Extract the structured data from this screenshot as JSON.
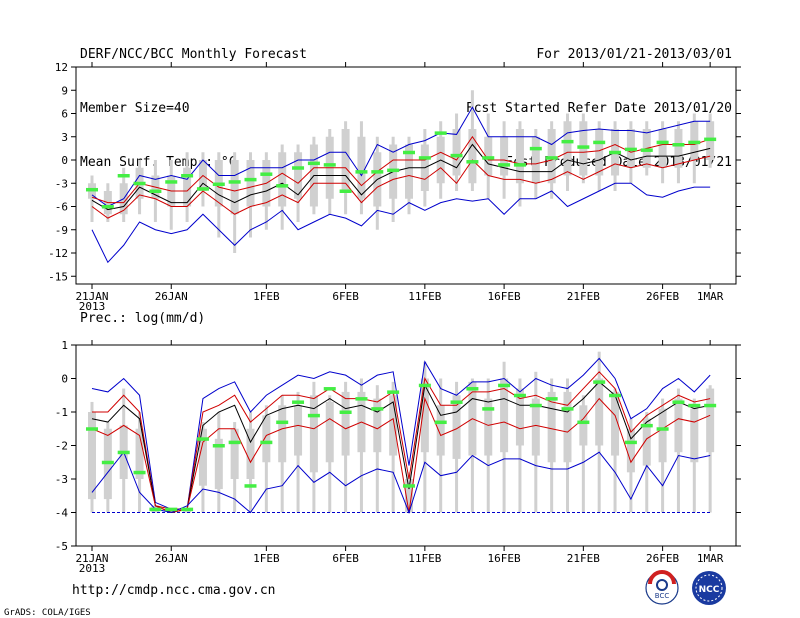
{
  "header": {
    "left": [
      "DERF/NCC/BCC Monthly Forecast",
      "Member Size=40",
      "Mean Surf. Temp.: °C"
    ],
    "right": [
      "For 2013/01/21-2013/03/01",
      "Fcst Started Refer Date 2013/01/20",
      "Fcst Produced Date 2013/01/21"
    ]
  },
  "footer": {
    "url": "http://cmdp.ncc.cma.gov.cn",
    "grads": "GrADS: COLA/IGES",
    "logo_left_text": "BCC",
    "logo_right_text": "NCC"
  },
  "colors": {
    "box": "#d0d0d0",
    "mean": "#000000",
    "spread": "#d00000",
    "extreme": "#0000cc",
    "marker": "#44ee44"
  },
  "chart_data": [
    {
      "type": "line",
      "title": "Mean Surf. Temp.: °C",
      "ylim": [
        -16,
        12
      ],
      "yticks": [
        12,
        9,
        6,
        3,
        0,
        -3,
        -6,
        -9,
        -12,
        -15
      ],
      "xticks": [
        {
          "day": 0,
          "label": "21JAN",
          "sub": "2013"
        },
        {
          "day": 5,
          "label": "26JAN"
        },
        {
          "day": 11,
          "label": "1FEB"
        },
        {
          "day": 16,
          "label": "6FEB"
        },
        {
          "day": 21,
          "label": "11FEB"
        },
        {
          "day": 26,
          "label": "16FEB"
        },
        {
          "day": 31,
          "label": "21FEB"
        },
        {
          "day": 36,
          "label": "26FEB"
        },
        {
          "day": 39,
          "label": "1MAR"
        }
      ],
      "box_low": [
        -5,
        -7,
        -7,
        -5,
        -5,
        -6,
        -6,
        -4,
        -6,
        -7,
        -6,
        -6,
        -6,
        -5,
        -6,
        -5,
        -4,
        -5,
        -6,
        -5,
        -5,
        -4,
        -3,
        -2,
        -3,
        -2,
        -2,
        -3,
        -3,
        -3,
        -2,
        -2,
        -2,
        -2,
        -1,
        -1,
        -1,
        -1,
        0,
        0
      ],
      "box_high": [
        -3,
        -4,
        -3,
        -1,
        -2,
        -2,
        -1,
        0,
        0,
        0,
        0,
        0,
        1,
        1,
        2,
        3,
        4,
        3,
        1,
        2,
        2,
        2,
        3,
        4,
        4,
        3,
        3,
        4,
        3,
        4,
        5,
        5,
        4,
        4,
        4,
        4,
        4,
        4,
        5,
        5
      ],
      "whisk_low": [
        -8,
        -8,
        -8,
        -7,
        -8,
        -9,
        -8,
        -6,
        -10,
        -12,
        -10,
        -9,
        -9,
        -8,
        -7,
        -7,
        -7,
        -7,
        -9,
        -8,
        -7,
        -6,
        -5,
        -4,
        -4,
        -5,
        -5,
        -6,
        -5,
        -5,
        -4,
        -3,
        -4,
        -4,
        -3,
        -2,
        -3,
        -3,
        -3,
        -1
      ],
      "whisk_high": [
        -2,
        -3,
        -1,
        0,
        0,
        0,
        1,
        1,
        1,
        1,
        1,
        1,
        2,
        2,
        3,
        4,
        5,
        5,
        3,
        3,
        3,
        4,
        5,
        6,
        9,
        6,
        5,
        5,
        4,
        5,
        6,
        6,
        5,
        5,
        5,
        5,
        5,
        5,
        6,
        6
      ],
      "markers": [
        -3.8,
        -6,
        -2,
        -3,
        -4,
        -2.8,
        -2,
        -3.7,
        -3.1,
        -2.8,
        -2.5,
        -1.8,
        -3.3,
        -1,
        -0.4,
        -0.6,
        -4,
        -1.5,
        -1.5,
        -1.3,
        1,
        0.3,
        3.5,
        0.6,
        -0.2,
        0.3,
        -0.6,
        -0.6,
        1.5,
        0.3,
        2.4,
        1.7,
        2.3,
        1,
        1.4,
        1.3,
        2.3,
        2,
        2.3,
        2.7
      ],
      "series": [
        {
          "name": "max",
          "values": [
            -4.5,
            -6,
            -5,
            -2,
            -2.5,
            -2,
            -2.5,
            0,
            -2,
            -2,
            -1,
            -1,
            -1,
            0,
            0,
            1,
            1,
            -2,
            2,
            1,
            2,
            2.5,
            3.5,
            3.3,
            6.8,
            3,
            3,
            3,
            3,
            2,
            3.5,
            3.8,
            4,
            3.8,
            3.8,
            3.5,
            4,
            4.5,
            5,
            5
          ]
        },
        {
          "name": "upper",
          "values": [
            -4.8,
            -5.5,
            -5.5,
            -3,
            -3.5,
            -4,
            -4,
            -2,
            -3.5,
            -4,
            -3.5,
            -3,
            -1.7,
            -3,
            -1,
            -1,
            -1,
            -3.3,
            -1.5,
            0,
            0,
            0,
            1,
            0,
            3,
            0,
            0,
            -0.5,
            -0.5,
            0,
            1,
            1,
            1.2,
            2,
            1,
            1.5,
            2,
            2,
            2,
            2.7
          ]
        },
        {
          "name": "mean",
          "values": [
            -5.2,
            -6.4,
            -6,
            -3.5,
            -4.5,
            -5.5,
            -5.5,
            -3,
            -4.5,
            -5.5,
            -4.5,
            -4,
            -3,
            -4.5,
            -2,
            -2,
            -2,
            -4.5,
            -2.5,
            -1.5,
            -1,
            -1,
            0,
            -1,
            2,
            -0.5,
            -1,
            -1.5,
            -1.5,
            -1.5,
            0,
            -0.5,
            0,
            1,
            0,
            0.5,
            0.5,
            0.5,
            1,
            1.5
          ]
        },
        {
          "name": "lower",
          "values": [
            -6,
            -7.5,
            -6.5,
            -4.5,
            -5,
            -6,
            -6,
            -4,
            -5.5,
            -7,
            -6,
            -5.5,
            -4.5,
            -5.5,
            -3,
            -3,
            -3,
            -5.5,
            -3.5,
            -2.5,
            -2,
            -2.5,
            -1,
            -3,
            0,
            -2,
            -2.5,
            -2.5,
            -3,
            -2.5,
            -1.5,
            -2.5,
            -1.5,
            -0.5,
            -1,
            -0.5,
            -1,
            -0.5,
            0,
            0.5
          ]
        },
        {
          "name": "min",
          "values": [
            -9,
            -13.2,
            -11,
            -8,
            -9,
            -9.5,
            -9,
            -7,
            -9,
            -11,
            -9,
            -8,
            -6.5,
            -9,
            -8,
            -7,
            -7.5,
            -8.5,
            -6.5,
            -7,
            -5.5,
            -6.5,
            -5.5,
            -5,
            -5.3,
            -5,
            -7,
            -5,
            -5,
            -4,
            -6,
            -5,
            -4,
            -3,
            -3,
            -4.5,
            -4.8,
            -4,
            -3.5,
            -3.5
          ]
        }
      ]
    },
    {
      "type": "line",
      "title": "Prec.: log(mm/d)",
      "ylim": [
        -5,
        1
      ],
      "yticks": [
        1,
        0,
        -1,
        -2,
        -3,
        -4,
        -5
      ],
      "xticks": [
        {
          "day": 0,
          "label": "21JAN",
          "sub": "2013"
        },
        {
          "day": 5,
          "label": "26JAN"
        },
        {
          "day": 11,
          "label": "1FEB"
        },
        {
          "day": 16,
          "label": "6FEB"
        },
        {
          "day": 21,
          "label": "11FEB"
        },
        {
          "day": 26,
          "label": "16FEB"
        },
        {
          "day": 31,
          "label": "21FEB"
        },
        {
          "day": 36,
          "label": "26FEB"
        },
        {
          "day": 39,
          "label": "1MAR"
        }
      ],
      "box_low": [
        -3.6,
        -3.6,
        -3,
        -3,
        -4,
        -4,
        -4,
        -3.2,
        -3.3,
        -3,
        -3,
        -2.5,
        -2.5,
        -2.3,
        -2.8,
        -2.5,
        -2.3,
        -2.2,
        -2.2,
        -2.3,
        -4,
        -2.2,
        -2.3,
        -2.4,
        -2.3,
        -2.3,
        -2.2,
        -2,
        -2.3,
        -2.5,
        -2.5,
        -2,
        -2,
        -2.3,
        -2.8,
        -2.6,
        -2.5,
        -2.2,
        -2.5,
        -2.2
      ],
      "box_high": [
        -1,
        -1.5,
        -1.4,
        -1.5,
        -3.8,
        -3.9,
        -3.9,
        -1.5,
        -1.8,
        -1.5,
        -1.5,
        -1.1,
        -0.8,
        -0.8,
        -0.5,
        -0.7,
        -0.4,
        -0.4,
        -0.6,
        -0.5,
        -3,
        0,
        -0.8,
        -0.5,
        -0.1,
        -0.6,
        0,
        -0.3,
        -0.6,
        -0.4,
        -0.4,
        -0.8,
        0,
        -0.4,
        -1.5,
        -1.2,
        -0.9,
        -0.6,
        -0.9,
        -0.3
      ],
      "whisk_low": [
        -4,
        -4,
        -4,
        -4,
        -4,
        -4,
        -4,
        -4,
        -4,
        -4,
        -4,
        -4,
        -4,
        -4,
        -4,
        -4,
        -4,
        -4,
        -4,
        -4,
        -4,
        -4,
        -4,
        -4,
        -4,
        -4,
        -4,
        -4,
        -4,
        -4,
        -4,
        -4,
        -4,
        -4,
        -4,
        -4,
        -4,
        -4,
        -4,
        -4
      ],
      "whisk_high": [
        -0.7,
        -1.3,
        -0.3,
        -1,
        -3.8,
        -3.9,
        -3.9,
        -1.3,
        -1,
        -1.3,
        -1,
        -0.8,
        -0.5,
        -0.4,
        -0.1,
        -0.5,
        -0.1,
        0,
        -0.2,
        -0.1,
        -2.8,
        0.5,
        0,
        -0.1,
        0,
        0,
        0.5,
        0,
        0.2,
        0,
        0,
        -0.5,
        0.8,
        -0.3,
        -1.2,
        -1,
        -0.6,
        -0.3,
        -0.6,
        -0.2
      ],
      "markers": [
        -1.5,
        -2.5,
        -2.2,
        -2.8,
        -3.9,
        -3.9,
        -3.9,
        -1.8,
        -2,
        -1.9,
        -3.2,
        -1.9,
        -1.3,
        -0.7,
        -1.1,
        -0.3,
        -1,
        -0.6,
        -0.9,
        -0.4,
        -3.2,
        -0.2,
        -1.3,
        -0.7,
        -0.3,
        -0.9,
        -0.2,
        -0.5,
        -0.8,
        -0.6,
        -0.9,
        -1.3,
        -0.1,
        -0.5,
        -1.9,
        -1.4,
        -1.5,
        -0.7,
        -0.8,
        -0.8
      ],
      "series": [
        {
          "name": "max",
          "values": [
            -0.3,
            -0.4,
            0,
            -0.5,
            -3.7,
            -3.9,
            -3.9,
            -0.6,
            -0.3,
            -0.1,
            -1,
            -0.5,
            -0.2,
            0.1,
            0,
            0.2,
            0.1,
            -0.2,
            0.1,
            0.2,
            -2.6,
            0.5,
            -0.3,
            -0.5,
            -0.1,
            -0.1,
            0,
            -0.4,
            0,
            -0.2,
            -0.3,
            0.1,
            0.6,
            0,
            -1.2,
            -0.9,
            -0.3,
            0,
            -0.4,
            0.1
          ]
        },
        {
          "name": "upper",
          "values": [
            -1,
            -1,
            -0.5,
            -1,
            -3.8,
            -3.9,
            -3.9,
            -1,
            -0.8,
            -0.5,
            -1.3,
            -0.9,
            -0.5,
            -0.5,
            -0.6,
            -0.3,
            -0.6,
            -0.6,
            -0.7,
            -0.4,
            -3,
            0,
            -0.8,
            -0.8,
            -0.4,
            -0.4,
            -0.3,
            -0.6,
            -0.5,
            -0.7,
            -0.8,
            -0.3,
            0.2,
            -0.3,
            -1.6,
            -1.1,
            -0.8,
            -0.5,
            -0.7,
            -0.6
          ]
        },
        {
          "name": "mean",
          "values": [
            -1.2,
            -1.3,
            -0.8,
            -1.2,
            -3.8,
            -4,
            -3.9,
            -1.4,
            -1,
            -0.8,
            -1.9,
            -1.1,
            -0.9,
            -0.8,
            -0.9,
            -0.6,
            -0.9,
            -0.8,
            -1,
            -0.7,
            -3.3,
            -0.2,
            -1.1,
            -1,
            -0.6,
            -0.7,
            -0.6,
            -0.8,
            -0.8,
            -0.9,
            -1,
            -0.6,
            -0.1,
            -0.5,
            -1.8,
            -1.3,
            -1,
            -0.7,
            -0.9,
            -0.8
          ]
        },
        {
          "name": "lower",
          "values": [
            -1.5,
            -1.7,
            -1.4,
            -1.7,
            -3.8,
            -4,
            -3.9,
            -1.9,
            -1.5,
            -1.5,
            -2.5,
            -1.7,
            -1.5,
            -1.4,
            -1.5,
            -1.2,
            -1.5,
            -1.3,
            -1.5,
            -1.2,
            -4,
            -0.6,
            -1.7,
            -1.5,
            -1.2,
            -1.4,
            -1.3,
            -1.5,
            -1.4,
            -1.5,
            -1.6,
            -1.2,
            -0.6,
            -1.1,
            -2.5,
            -1.8,
            -1.5,
            -1.2,
            -1.3,
            -1.1
          ]
        },
        {
          "name": "min",
          "values": [
            -3.4,
            -2.8,
            -2.2,
            -3.4,
            -3.9,
            -4,
            -3.8,
            -3.3,
            -3.4,
            -3.6,
            -4,
            -3.3,
            -3.2,
            -2.6,
            -3.1,
            -2.8,
            -3.2,
            -2.9,
            -2.7,
            -2.8,
            -4,
            -2.5,
            -2.9,
            -2.8,
            -2.3,
            -2.6,
            -2.4,
            -2.4,
            -2.6,
            -2.7,
            -2.7,
            -2.5,
            -2.2,
            -2.8,
            -3.6,
            -2.6,
            -3.2,
            -2.3,
            -2.4,
            -2.3
          ]
        }
      ]
    }
  ]
}
